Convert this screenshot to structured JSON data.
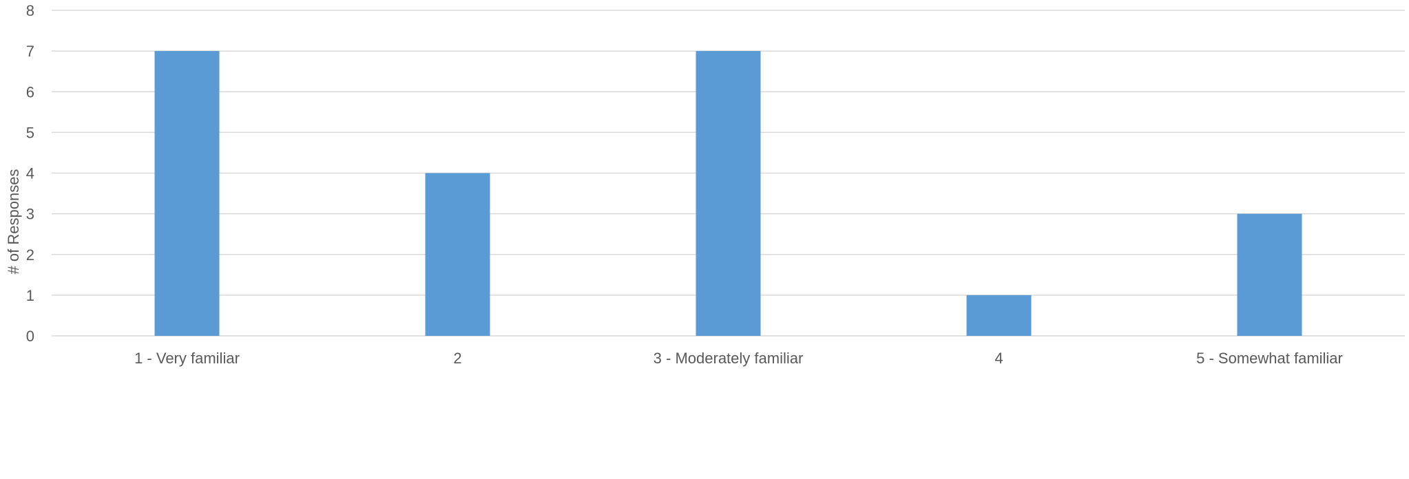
{
  "chart_data": {
    "type": "bar",
    "title": "",
    "xlabel": "",
    "ylabel": "# of Responses",
    "categories": [
      "1 - Very familiar",
      "2",
      "3 - Moderately familiar",
      "4",
      "5 - Somewhat familiar"
    ],
    "series": [
      {
        "values": [
          7,
          4,
          7,
          1,
          3
        ],
        "color": "#5b9bd5"
      }
    ],
    "ylim": [
      0,
      8
    ],
    "yticks": [
      "0",
      "1",
      "2",
      "3",
      "4",
      "5",
      "6",
      "7",
      "8"
    ],
    "grid": true,
    "legend": "none"
  }
}
